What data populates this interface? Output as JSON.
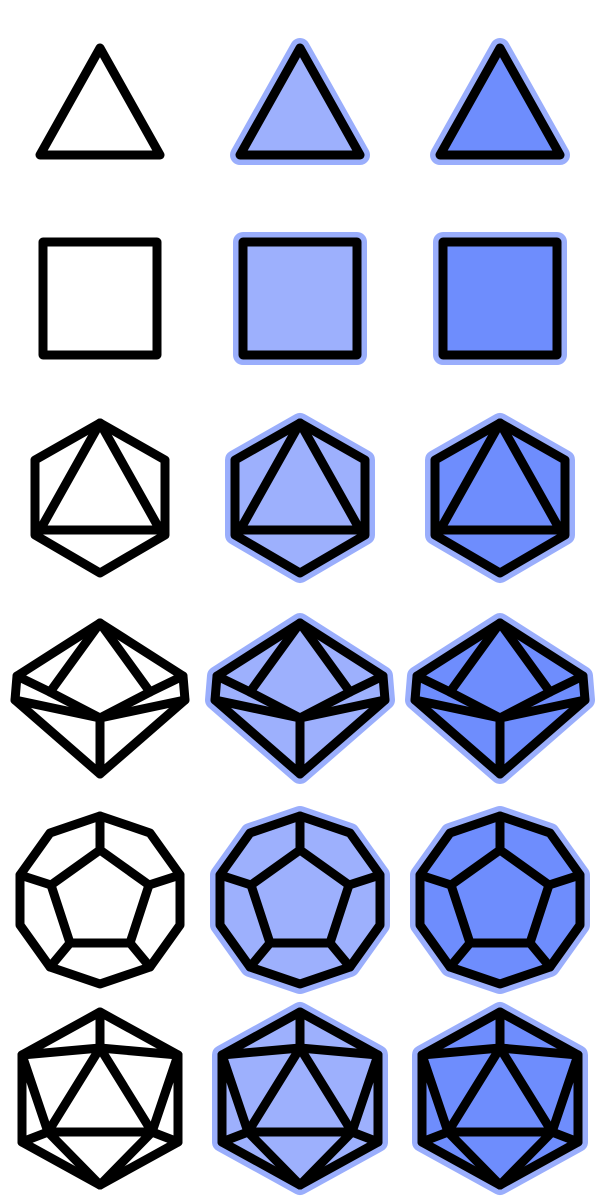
{
  "palette": {
    "stroke": "#000000",
    "outline_glow": "#9aaefc",
    "fill_light": "#9db0fd",
    "fill_dark": "#6e8dfd"
  },
  "variants": [
    {
      "name": "outline",
      "fill": "#ffffff",
      "glow": false
    },
    {
      "name": "light-blue",
      "fill": "#9db0fd",
      "glow": true
    },
    {
      "name": "dark-blue",
      "fill": "#6e8dfd",
      "glow": true
    }
  ],
  "icons": [
    {
      "name": "d4-icon"
    },
    {
      "name": "d6-icon"
    },
    {
      "name": "d8-icon"
    },
    {
      "name": "d10-icon"
    },
    {
      "name": "d12-icon"
    },
    {
      "name": "d20-icon"
    }
  ]
}
